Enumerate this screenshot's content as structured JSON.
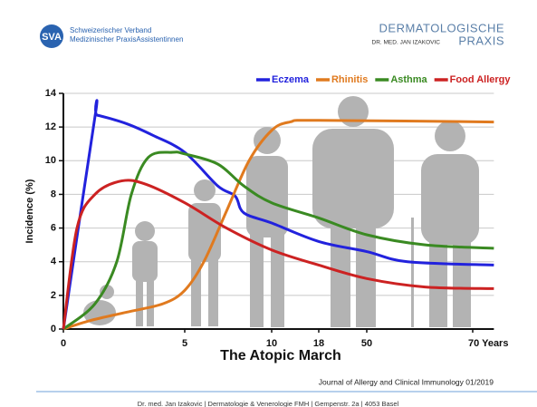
{
  "header": {
    "logo": "SVA",
    "org_line1": "Schweizerischer Verband",
    "org_line2": "Medizinischer PraxisAssistentinnen",
    "brand_line1": "DERMATOLOGISCHE",
    "brand_doctor": "DR. MED. JAN IZAKOVIC",
    "brand_line2": "PRAXIS"
  },
  "chart_data": {
    "type": "line",
    "title": "The Atopic March",
    "y_label": "Incidence (%)",
    "series": [
      {
        "name": "Eczema",
        "color": "#2222dd",
        "x": [
          0,
          1.3,
          1.4,
          2.6,
          3.7,
          5,
          6.9,
          7.9,
          8.4,
          10,
          18,
          50,
          57.7,
          74
        ],
        "values": [
          0,
          12.6,
          12.7,
          12.2,
          11.5,
          10.5,
          8.5,
          7.9,
          6.9,
          6.3,
          5.2,
          4.6,
          4.0,
          3.8
        ]
      },
      {
        "name": "Rhinitis",
        "color": "#e07a1f",
        "x": [
          0,
          1.1,
          2.6,
          4.1,
          5,
          6.1,
          7.4,
          8.7,
          10,
          13.1,
          18,
          74
        ],
        "values": [
          0,
          0.5,
          1.0,
          1.5,
          2.3,
          4.0,
          7.0,
          10.0,
          11.8,
          12.3,
          12.4,
          12.3
        ]
      },
      {
        "name": "Asthma",
        "color": "#3a8a22",
        "x": [
          0,
          1.3,
          2.2,
          2.8,
          3.5,
          4.5,
          5,
          6.9,
          8.4,
          10,
          18,
          50,
          61,
          74
        ],
        "values": [
          0,
          1.5,
          4.0,
          8.0,
          10.2,
          10.5,
          10.4,
          9.8,
          8.5,
          7.5,
          6.6,
          5.6,
          5.0,
          4.8
        ]
      },
      {
        "name": "Food Allergy",
        "color": "#cc2222",
        "x": [
          0,
          0.56,
          1.3,
          2.4,
          3.4,
          5,
          7.4,
          10,
          18,
          50,
          61,
          74
        ],
        "values": [
          0,
          6.0,
          8.0,
          8.8,
          8.6,
          7.5,
          6.0,
          4.7,
          3.8,
          3.0,
          2.5,
          2.4
        ]
      }
    ],
    "xlim": [
      0,
      74
    ],
    "xticks": [
      0,
      5,
      10,
      18,
      50,
      {
        "value": 70,
        "label": "70 Years"
      }
    ],
    "ylim": [
      0,
      14
    ],
    "yticks": [
      0,
      2,
      4,
      6,
      8,
      10,
      12,
      14
    ],
    "grid": true,
    "source": "Journal of Allergy and Clinical Immunology 01/2019"
  },
  "footer": "Dr. med. Jan Izakovic | Dermatologie & Venerologie FMH | Gempenstr. 2a | 4053 Basel"
}
